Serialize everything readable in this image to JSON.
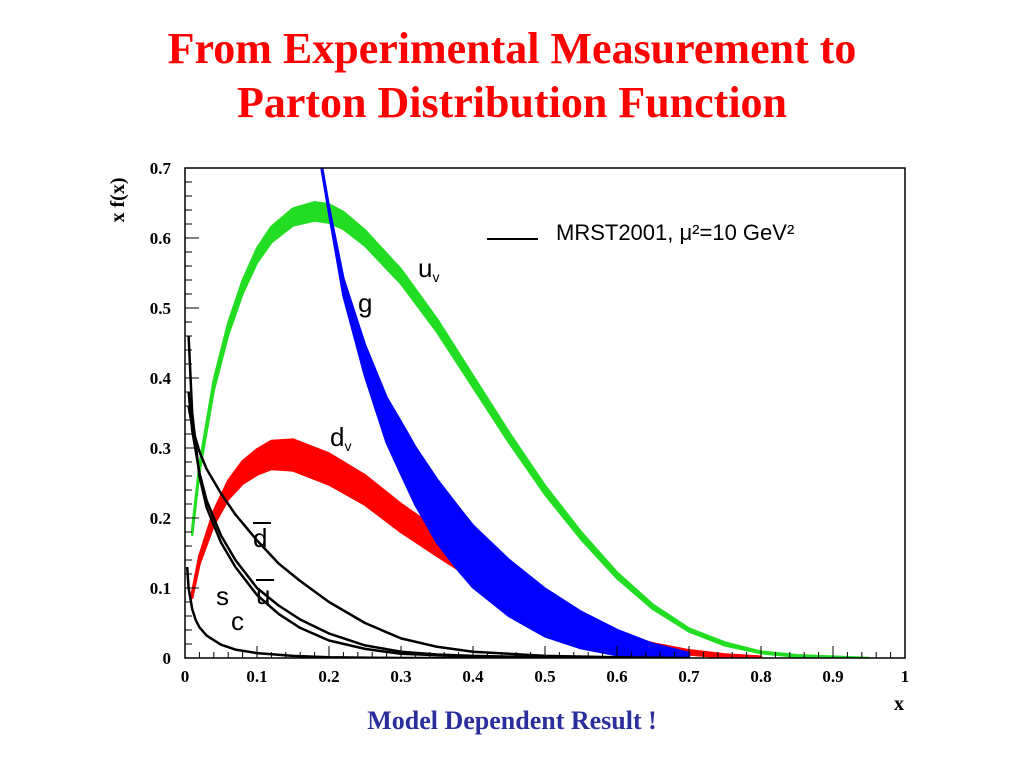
{
  "slide": {
    "title_line1": "From Experimental Measurement to",
    "title_line2": "Parton Distribution Function",
    "footer": "Model Dependent Result !"
  },
  "chart_data": {
    "type": "line",
    "ylabel": "x f(x)",
    "xlabel": "x",
    "xlim": [
      0,
      1
    ],
    "ylim": [
      0,
      0.7
    ],
    "x_ticks": [
      "0",
      "0.1",
      "0.2",
      "0.3",
      "0.4",
      "0.5",
      "0.6",
      "0.7",
      "0.8",
      "0.9",
      "1"
    ],
    "y_ticks": [
      "0",
      "0.1",
      "0.2",
      "0.3",
      "0.4",
      "0.5",
      "0.6",
      "0.7"
    ],
    "legend": {
      "text": "MRST2001, μ²=10 GeV²",
      "placement": "top-right"
    },
    "series": [
      {
        "name": "u_v",
        "label": "u",
        "sub": "v",
        "color": "#22dd22",
        "band": true,
        "x": [
          0.01,
          0.02,
          0.04,
          0.06,
          0.08,
          0.1,
          0.12,
          0.15,
          0.18,
          0.2,
          0.22,
          0.25,
          0.3,
          0.35,
          0.4,
          0.45,
          0.5,
          0.55,
          0.6,
          0.65,
          0.7,
          0.75,
          0.8,
          0.85,
          0.9,
          0.95
        ],
        "y": [
          0.18,
          0.27,
          0.39,
          0.47,
          0.53,
          0.575,
          0.605,
          0.63,
          0.638,
          0.635,
          0.625,
          0.6,
          0.545,
          0.475,
          0.395,
          0.315,
          0.24,
          0.175,
          0.118,
          0.073,
          0.04,
          0.02,
          0.008,
          0.003,
          0.001,
          0.0
        ],
        "width": [
          0.004,
          0.005,
          0.007,
          0.008,
          0.009,
          0.01,
          0.011,
          0.012,
          0.013,
          0.013,
          0.012,
          0.011,
          0.01,
          0.009,
          0.008,
          0.007,
          0.006,
          0.005,
          0.004,
          0.003,
          0.002,
          0.002,
          0.001,
          0.001,
          0.001,
          0.0
        ]
      },
      {
        "name": "d_v",
        "label": "d",
        "sub": "v",
        "color": "#ff0000",
        "band": true,
        "x": [
          0.01,
          0.02,
          0.04,
          0.06,
          0.08,
          0.1,
          0.12,
          0.15,
          0.2,
          0.25,
          0.3,
          0.35,
          0.4,
          0.45,
          0.5,
          0.55,
          0.6,
          0.65,
          0.7,
          0.75,
          0.8
        ],
        "y": [
          0.09,
          0.14,
          0.2,
          0.24,
          0.265,
          0.28,
          0.29,
          0.29,
          0.27,
          0.24,
          0.2,
          0.165,
          0.13,
          0.097,
          0.07,
          0.046,
          0.028,
          0.016,
          0.008,
          0.003,
          0.001
        ],
        "width": [
          0.004,
          0.006,
          0.01,
          0.013,
          0.016,
          0.018,
          0.02,
          0.022,
          0.022,
          0.021,
          0.02,
          0.019,
          0.017,
          0.015,
          0.012,
          0.009,
          0.007,
          0.005,
          0.003,
          0.002,
          0.001
        ]
      },
      {
        "name": "g",
        "label": "g",
        "color": "#0000ff",
        "band": true,
        "x": [
          0.19,
          0.2,
          0.22,
          0.25,
          0.28,
          0.3,
          0.32,
          0.35,
          0.38,
          0.4,
          0.45,
          0.5,
          0.55,
          0.6,
          0.65,
          0.7
        ],
        "y": [
          0.7,
          0.64,
          0.53,
          0.425,
          0.34,
          0.3,
          0.26,
          0.21,
          0.17,
          0.145,
          0.1,
          0.065,
          0.04,
          0.022,
          0.01,
          0.003
        ],
        "width": [
          0.003,
          0.004,
          0.012,
          0.022,
          0.032,
          0.037,
          0.041,
          0.045,
          0.045,
          0.044,
          0.04,
          0.034,
          0.026,
          0.018,
          0.01,
          0.004
        ]
      },
      {
        "name": "dbar",
        "label": "d",
        "overline": true,
        "color": "#000000",
        "band": false,
        "x": [
          0.005,
          0.01,
          0.02,
          0.03,
          0.05,
          0.07,
          0.1,
          0.13,
          0.16,
          0.2,
          0.25,
          0.3,
          0.35,
          0.4,
          0.5,
          0.6,
          0.7
        ],
        "y": [
          0.36,
          0.33,
          0.295,
          0.27,
          0.235,
          0.205,
          0.168,
          0.135,
          0.11,
          0.08,
          0.05,
          0.028,
          0.016,
          0.009,
          0.003,
          0.001,
          0.0
        ]
      },
      {
        "name": "ubar",
        "label": "u",
        "overline": true,
        "color": "#000000",
        "band": false,
        "x": [
          0.005,
          0.01,
          0.02,
          0.03,
          0.05,
          0.07,
          0.1,
          0.13,
          0.16,
          0.2,
          0.25,
          0.3,
          0.35,
          0.4,
          0.5,
          0.6
        ],
        "y": [
          0.38,
          0.325,
          0.265,
          0.225,
          0.175,
          0.14,
          0.1,
          0.075,
          0.055,
          0.035,
          0.018,
          0.009,
          0.005,
          0.003,
          0.001,
          0.0
        ]
      },
      {
        "name": "s",
        "label": "s",
        "color": "#000000",
        "band": false,
        "x": [
          0.005,
          0.01,
          0.02,
          0.03,
          0.05,
          0.07,
          0.1,
          0.13,
          0.16,
          0.2,
          0.25,
          0.3,
          0.4,
          0.5
        ],
        "y": [
          0.46,
          0.35,
          0.26,
          0.215,
          0.165,
          0.13,
          0.09,
          0.063,
          0.043,
          0.025,
          0.013,
          0.006,
          0.002,
          0.0
        ]
      },
      {
        "name": "c",
        "label": "c",
        "color": "#000000",
        "band": false,
        "x": [
          0.003,
          0.005,
          0.01,
          0.015,
          0.02,
          0.03,
          0.05,
          0.07,
          0.1,
          0.15,
          0.2,
          0.3,
          0.4
        ],
        "y": [
          0.13,
          0.1,
          0.07,
          0.054,
          0.044,
          0.032,
          0.019,
          0.012,
          0.007,
          0.003,
          0.001,
          0.0,
          0.0
        ]
      }
    ]
  }
}
